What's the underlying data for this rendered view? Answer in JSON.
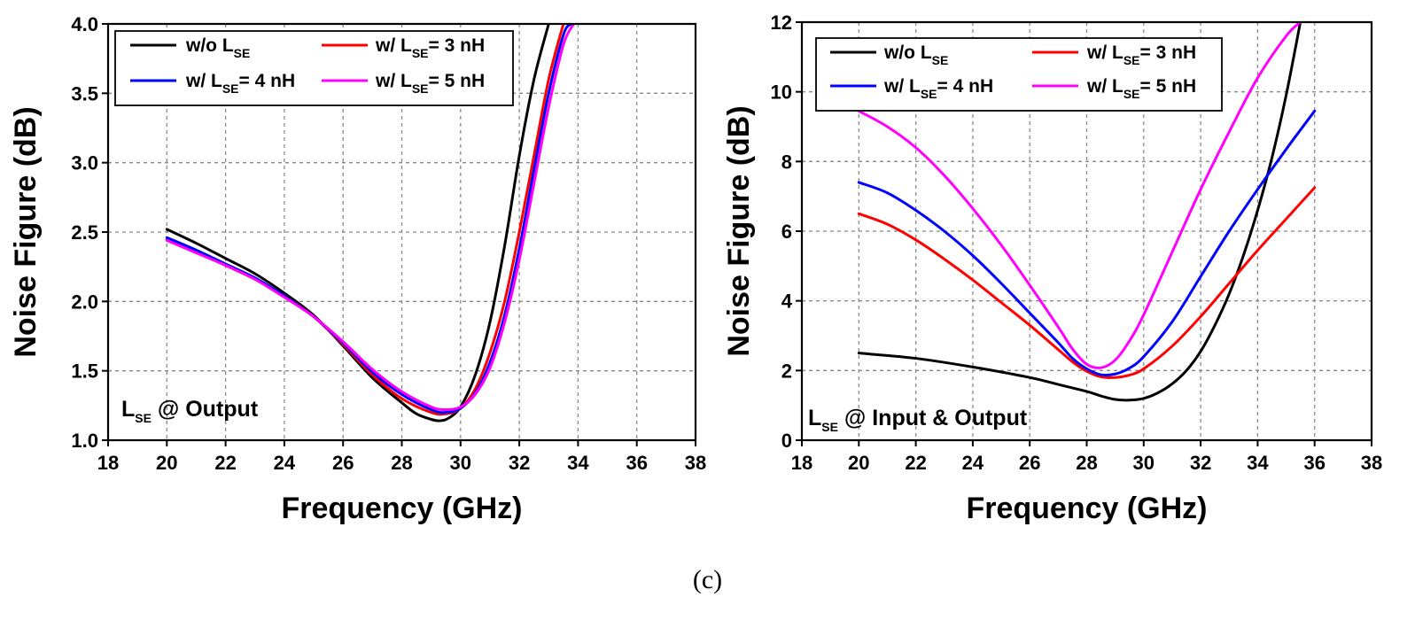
{
  "caption": "(c)",
  "colors": {
    "black": "#000000",
    "red": "#ff0000",
    "blue": "#0000ff",
    "magenta": "#ff00ff"
  },
  "chart_data": [
    {
      "type": "line",
      "xlabel": "Frequency (GHz)",
      "ylabel": "Noise Figure (dB)",
      "xlim": [
        18,
        38
      ],
      "ylim": [
        1.0,
        4.0
      ],
      "xticks": [
        "18",
        "20",
        "22",
        "24",
        "26",
        "28",
        "30",
        "32",
        "34",
        "36",
        "38"
      ],
      "yticks": [
        "1.0",
        "1.5",
        "2.0",
        "2.5",
        "3.0",
        "3.5",
        "4.0"
      ],
      "grid": true,
      "legend_position": "top",
      "annotation": {
        "main": "L",
        "sub": "SE",
        "rest": " @ Output"
      },
      "series": [
        {
          "name": "w/o L",
          "name_sub": "SE",
          "name_rest": "",
          "color": "#000000",
          "x": [
            20,
            21,
            22,
            23,
            24,
            25,
            26,
            27,
            28,
            28.5,
            29,
            29.3,
            29.6,
            30,
            30.5,
            31,
            31.5,
            32,
            32.5,
            33
          ],
          "y": [
            2.52,
            2.42,
            2.31,
            2.2,
            2.06,
            1.9,
            1.68,
            1.45,
            1.27,
            1.19,
            1.15,
            1.14,
            1.16,
            1.24,
            1.47,
            1.85,
            2.4,
            3.05,
            3.6,
            4.0
          ]
        },
        {
          "name": "w/ L",
          "name_sub": "SE",
          "name_rest": "= 3 nH",
          "color": "#ff0000",
          "x": [
            20,
            21,
            22,
            23,
            24,
            25,
            26,
            27,
            28,
            29,
            29.5,
            30,
            30.5,
            31,
            31.5,
            32,
            32.5,
            33,
            33.5
          ],
          "y": [
            2.45,
            2.36,
            2.26,
            2.16,
            2.04,
            1.89,
            1.69,
            1.47,
            1.3,
            1.2,
            1.19,
            1.23,
            1.37,
            1.63,
            2.0,
            2.5,
            3.05,
            3.6,
            4.0
          ]
        },
        {
          "name": "w/ L",
          "name_sub": "SE",
          "name_rest": "= 4 nH",
          "color": "#0000ff",
          "x": [
            20,
            21,
            22,
            23,
            24,
            25,
            26,
            27,
            28,
            29,
            29.5,
            30,
            30.5,
            31,
            31.5,
            32,
            32.5,
            33,
            33.5,
            33.75
          ],
          "y": [
            2.46,
            2.37,
            2.27,
            2.17,
            2.04,
            1.89,
            1.7,
            1.49,
            1.33,
            1.22,
            1.2,
            1.23,
            1.34,
            1.56,
            1.9,
            2.38,
            2.95,
            3.5,
            3.92,
            4.0
          ]
        },
        {
          "name": "w/ L",
          "name_sub": "SE",
          "name_rest": "= 5 nH",
          "color": "#ff00ff",
          "x": [
            20,
            21,
            22,
            23,
            24,
            25,
            26,
            27,
            28,
            29,
            29.5,
            30,
            30.5,
            31,
            31.5,
            32,
            32.5,
            33,
            33.5,
            33.85
          ],
          "y": [
            2.44,
            2.35,
            2.26,
            2.16,
            2.03,
            1.89,
            1.71,
            1.51,
            1.35,
            1.24,
            1.22,
            1.24,
            1.33,
            1.52,
            1.85,
            2.3,
            2.85,
            3.4,
            3.85,
            4.0
          ]
        }
      ]
    },
    {
      "type": "line",
      "xlabel": "Frequency (GHz)",
      "ylabel": "Noise Figure (dB)",
      "xlim": [
        18,
        38
      ],
      "ylim": [
        0,
        12
      ],
      "xticks": [
        "18",
        "20",
        "22",
        "24",
        "26",
        "28",
        "30",
        "32",
        "34",
        "36",
        "38"
      ],
      "yticks": [
        "0",
        "2",
        "4",
        "6",
        "8",
        "10",
        "12"
      ],
      "grid": true,
      "legend_position": "top",
      "annotation": {
        "main": "L",
        "sub": "SE",
        "rest": " @ Input & Output"
      },
      "series": [
        {
          "name": "w/o L",
          "name_sub": "SE",
          "name_rest": "",
          "color": "#000000",
          "x": [
            20,
            22,
            24,
            26,
            27,
            28,
            28.5,
            29,
            29.5,
            30,
            30.5,
            31,
            31.5,
            32,
            32.5,
            33,
            33.5,
            34,
            34.5,
            35,
            35.5
          ],
          "y": [
            2.5,
            2.35,
            2.1,
            1.8,
            1.6,
            1.4,
            1.27,
            1.17,
            1.15,
            1.2,
            1.36,
            1.62,
            2.0,
            2.55,
            3.3,
            4.2,
            5.3,
            6.6,
            8.1,
            9.9,
            12.0
          ]
        },
        {
          "name": "w/ L",
          "name_sub": "SE",
          "name_rest": "= 3 nH",
          "color": "#ff0000",
          "x": [
            20,
            21,
            22,
            23,
            24,
            25,
            26,
            27,
            27.5,
            28,
            28.5,
            29,
            29.5,
            30,
            31,
            32,
            33,
            34,
            35,
            36
          ],
          "y": [
            6.5,
            6.2,
            5.75,
            5.2,
            4.6,
            3.95,
            3.3,
            2.6,
            2.25,
            1.98,
            1.82,
            1.8,
            1.87,
            2.05,
            2.7,
            3.55,
            4.5,
            5.45,
            6.35,
            7.25
          ]
        },
        {
          "name": "w/ L",
          "name_sub": "SE",
          "name_rest": "= 4 nH",
          "color": "#0000ff",
          "x": [
            20,
            21,
            22,
            23,
            24,
            25,
            26,
            27,
            27.5,
            28,
            28.5,
            29,
            29.5,
            30,
            31,
            32,
            33,
            34,
            35,
            36
          ],
          "y": [
            7.4,
            7.1,
            6.6,
            6.0,
            5.3,
            4.5,
            3.65,
            2.8,
            2.35,
            2.05,
            1.88,
            1.9,
            2.07,
            2.4,
            3.4,
            4.7,
            6.0,
            7.2,
            8.35,
            9.45
          ]
        },
        {
          "name": "w/ L",
          "name_sub": "SE",
          "name_rest": "= 5 nH",
          "color": "#ff00ff",
          "x": [
            20,
            21,
            22,
            23,
            24,
            25,
            26,
            27,
            27.5,
            28,
            28.5,
            29,
            29.5,
            30,
            31,
            32,
            33,
            34,
            35,
            35.5
          ],
          "y": [
            9.45,
            9.0,
            8.4,
            7.6,
            6.65,
            5.6,
            4.45,
            3.25,
            2.62,
            2.18,
            2.08,
            2.3,
            2.85,
            3.6,
            5.4,
            7.2,
            8.85,
            10.4,
            11.6,
            12.0
          ]
        }
      ]
    }
  ]
}
